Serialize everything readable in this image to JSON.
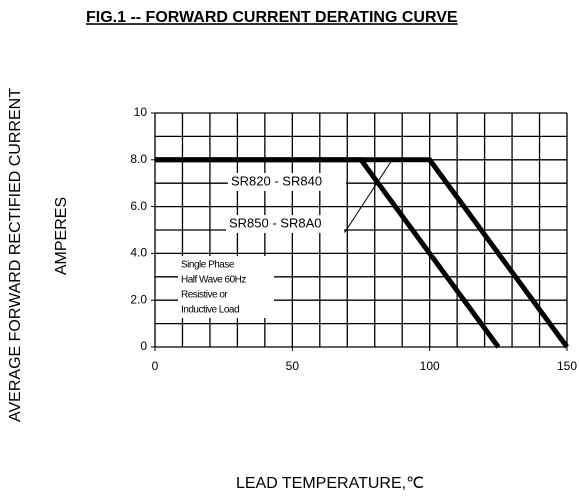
{
  "chart_data": {
    "type": "line",
    "title": "FIG.1 -- FORWARD CURRENT DERATING CURVE",
    "ylabel": "AVERAGE FORWARD RECTIFIED CURRENT",
    "ylabel2": "AMPERES",
    "xlabel": "LEAD TEMPERATURE,℃",
    "xlim": [
      0,
      150
    ],
    "ylim": [
      0,
      10
    ],
    "xticks": [
      0,
      50,
      100,
      150
    ],
    "yticks": [
      0,
      {
        "value": 2,
        "label": "2.0"
      },
      {
        "value": 4,
        "label": "4.0"
      },
      {
        "value": 6,
        "label": "6.0"
      },
      {
        "value": 8,
        "label": "8.0"
      },
      10
    ],
    "xgrid": [
      0,
      10,
      20,
      30,
      40,
      50,
      60,
      70,
      80,
      90,
      100,
      110,
      120,
      130,
      140,
      150
    ],
    "ygrid": [
      0,
      1,
      2,
      3,
      4,
      5,
      6,
      7,
      8,
      9,
      10
    ],
    "grid": true,
    "series": [
      {
        "name": "SR820 - SR840",
        "color": "#000000",
        "x": [
          0,
          100,
          150
        ],
        "values": [
          8,
          8,
          0
        ]
      },
      {
        "name": "SR850 - SR8A0",
        "color": "#000000",
        "x": [
          0,
          75,
          125
        ],
        "values": [
          8,
          8,
          0
        ]
      }
    ],
    "note": [
      "Single Phase",
      "Half Wave 60Hz",
      "Resistive or",
      "Inductive Load"
    ]
  }
}
